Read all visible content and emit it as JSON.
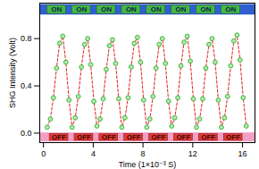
{
  "chart_data": {
    "type": "line",
    "x_label": "Time (1×10⁻³ S)",
    "y_label": "SHG Intensity (Volt)",
    "xlim": [
      -0.3,
      17.0
    ],
    "xticks": [
      0,
      4,
      8,
      12,
      16
    ],
    "ylim": [
      -0.08,
      1.1
    ],
    "yticks": [
      {
        "value": 0,
        "label": "0.0"
      },
      {
        "value": 0.4,
        "label": "0.4"
      },
      {
        "value": 0.8,
        "label": "0.8"
      }
    ],
    "grid": false,
    "series": [
      {
        "name": "SHG",
        "color": "#3cb83c",
        "marker": "circle",
        "line_style": "dashed",
        "x": [
          0.3,
          0.55,
          0.8,
          1.05,
          1.3,
          1.55,
          1.8,
          2.05,
          2.3,
          2.55,
          2.8,
          3.05,
          3.3,
          3.55,
          3.8,
          4.05,
          4.3,
          4.55,
          4.8,
          5.05,
          5.3,
          5.55,
          5.8,
          6.05,
          6.3,
          6.55,
          6.8,
          7.05,
          7.3,
          7.55,
          7.8,
          8.05,
          8.3,
          8.55,
          8.8,
          9.05,
          9.3,
          9.55,
          9.8,
          10.05,
          10.3,
          10.55,
          10.8,
          11.05,
          11.3,
          11.55,
          11.8,
          12.05,
          12.3,
          12.55,
          12.8,
          13.05,
          13.3,
          13.55,
          13.8,
          14.05,
          14.3,
          14.55,
          14.8,
          15.05,
          15.3,
          15.55,
          15.8,
          16.05,
          16.3
        ],
        "values": [
          0.05,
          0.12,
          0.3,
          0.55,
          0.76,
          0.82,
          0.6,
          0.28,
          0.05,
          0.13,
          0.31,
          0.56,
          0.75,
          0.8,
          0.58,
          0.27,
          0.06,
          0.12,
          0.29,
          0.54,
          0.74,
          0.79,
          0.59,
          0.29,
          0.05,
          0.13,
          0.3,
          0.56,
          0.76,
          0.81,
          0.6,
          0.28,
          0.05,
          0.12,
          0.31,
          0.55,
          0.75,
          0.8,
          0.59,
          0.27,
          0.06,
          0.13,
          0.3,
          0.57,
          0.77,
          0.82,
          0.61,
          0.29,
          0.05,
          0.12,
          0.29,
          0.55,
          0.75,
          0.8,
          0.6,
          0.28,
          0.05,
          0.13,
          0.31,
          0.57,
          0.78,
          0.83,
          0.62,
          0.3,
          0.06
        ]
      }
    ],
    "on_label": "ON",
    "off_label": "OFF",
    "on_periods": [
      [
        0.3,
        1.8
      ],
      [
        2.3,
        3.8
      ],
      [
        4.3,
        5.8
      ],
      [
        6.3,
        7.8
      ],
      [
        8.3,
        9.8
      ],
      [
        10.3,
        11.8
      ],
      [
        12.3,
        13.8
      ],
      [
        14.3,
        15.8
      ]
    ],
    "off_periods": [
      [
        0.5,
        2.0
      ],
      [
        2.5,
        4.0
      ],
      [
        4.5,
        6.0
      ],
      [
        6.5,
        8.0
      ],
      [
        8.5,
        10.0
      ],
      [
        10.5,
        12.0
      ],
      [
        12.5,
        14.0
      ],
      [
        14.5,
        16.0
      ]
    ]
  }
}
